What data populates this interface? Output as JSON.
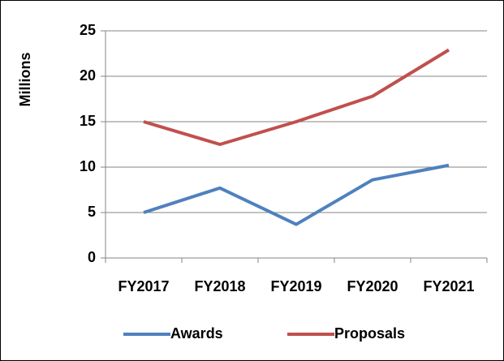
{
  "chart_data": {
    "type": "line",
    "y_label": "Millions",
    "categories": [
      "FY2017",
      "FY2018",
      "FY2019",
      "FY2020",
      "FY2021"
    ],
    "series": [
      {
        "name": "Awards",
        "color": "#4f81bd",
        "values": [
          5.0,
          7.7,
          3.7,
          8.6,
          10.2
        ]
      },
      {
        "name": "Proposals",
        "color": "#c0504d",
        "values": [
          15.0,
          12.5,
          15.0,
          17.8,
          22.9
        ]
      }
    ],
    "ylim": [
      0,
      25
    ],
    "yticks": [
      0,
      5,
      10,
      15,
      20,
      25
    ],
    "grid": true,
    "legend": "bottom"
  }
}
